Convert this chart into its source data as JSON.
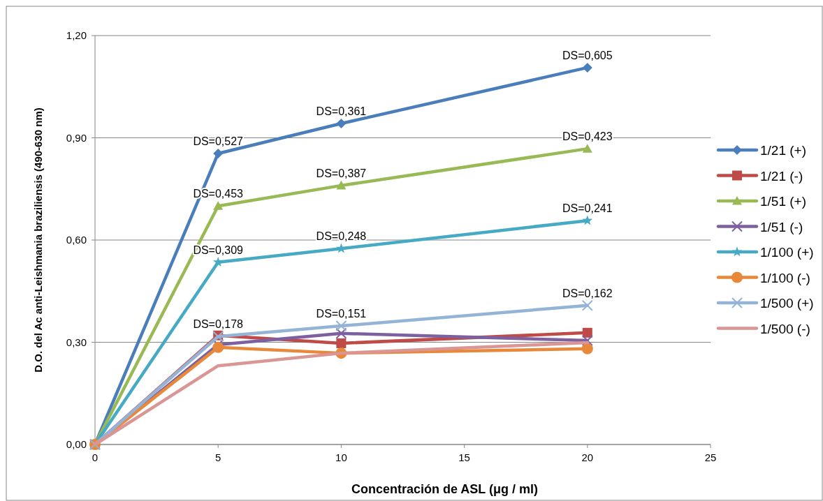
{
  "chart_data": {
    "type": "line",
    "xlabel": "Concentración de ASL (μg / ml)",
    "ylabel": "D.O. del Ac anti-Leishmania braziliensis (490-630 nm)",
    "x": [
      0,
      5,
      10,
      20
    ],
    "xlim": [
      0,
      25
    ],
    "xticks": [
      0,
      5,
      10,
      15,
      20,
      25
    ],
    "ylim": [
      0,
      1.2
    ],
    "yticks": [
      {
        "value": 0,
        "label": "0,00"
      },
      {
        "value": 0.3,
        "label": "0,30"
      },
      {
        "value": 0.6,
        "label": "0,60"
      },
      {
        "value": 0.9,
        "label": "0,90"
      },
      {
        "value": 1.2,
        "label": "1,20"
      }
    ],
    "grid": "y",
    "legend": "right",
    "line_style": "solid",
    "series": [
      {
        "name": "1/21 (+)",
        "color": "#4a7ebb",
        "marker": "diamond",
        "values": [
          0,
          0.854,
          0.942,
          1.106
        ]
      },
      {
        "name": "1/21 (-)",
        "color": "#be4b48",
        "marker": "square",
        "values": [
          0,
          0.32,
          0.297,
          0.328
        ]
      },
      {
        "name": "1/51 (+)",
        "color": "#98b954",
        "marker": "triangle",
        "values": [
          0,
          0.7,
          0.76,
          0.868
        ]
      },
      {
        "name": "1/51 (-)",
        "color": "#7d60a0",
        "marker": "cross",
        "values": [
          0,
          0.293,
          0.326,
          0.305
        ]
      },
      {
        "name": "1/100 (+)",
        "color": "#46aac5",
        "marker": "star",
        "values": [
          0,
          0.535,
          0.575,
          0.657
        ]
      },
      {
        "name": "1/100 (-)",
        "color": "#e8883a",
        "marker": "circle",
        "values": [
          0,
          0.285,
          0.268,
          0.281
        ]
      },
      {
        "name": "1/500 (+)",
        "color": "#95b3d7",
        "marker": "cross",
        "values": [
          0,
          0.317,
          0.348,
          0.408
        ]
      },
      {
        "name": "1/500 (-)",
        "color": "#d99694",
        "marker": "none",
        "values": [
          0,
          0.231,
          0.268,
          0.299
        ]
      }
    ],
    "annotations": [
      {
        "text": "DS=0,527",
        "x": 5,
        "y": 0.854
      },
      {
        "text": "DS=0,361",
        "x": 10,
        "y": 0.942
      },
      {
        "text": "DS=0,605",
        "x": 20,
        "y": 1.106
      },
      {
        "text": "DS=0,453",
        "x": 5,
        "y": 0.7
      },
      {
        "text": "DS=0,387",
        "x": 10,
        "y": 0.76
      },
      {
        "text": "DS=0,423",
        "x": 20,
        "y": 0.868
      },
      {
        "text": "DS=0,309",
        "x": 5,
        "y": 0.535
      },
      {
        "text": "DS=0,248",
        "x": 10,
        "y": 0.575
      },
      {
        "text": "DS=0,241",
        "x": 20,
        "y": 0.657
      },
      {
        "text": "DS=0,178",
        "x": 5,
        "y": 0.317
      },
      {
        "text": "DS=0,151",
        "x": 10,
        "y": 0.348
      },
      {
        "text": "DS=0,162",
        "x": 20,
        "y": 0.408
      }
    ]
  }
}
